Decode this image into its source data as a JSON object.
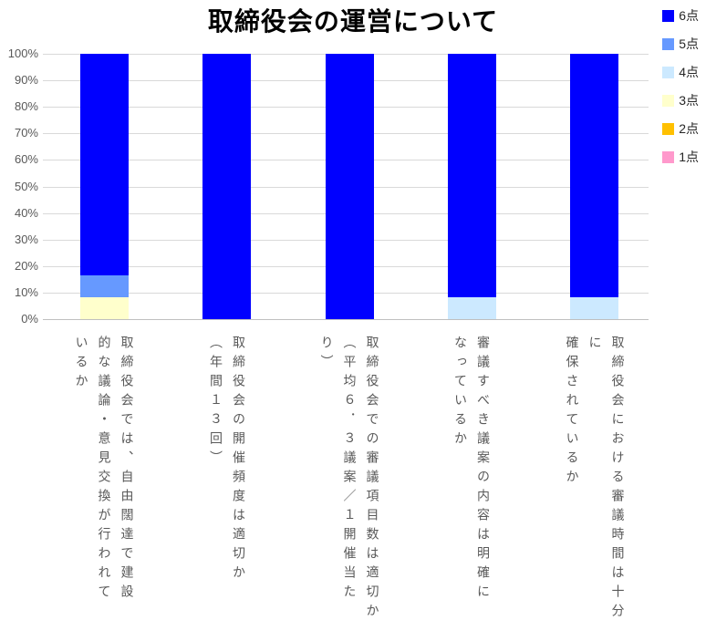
{
  "chart_data": {
    "type": "bar",
    "variant": "stacked-100-percent-column",
    "title": "取締役会の運営について",
    "categories": [
      "取締役会では、自由闊達で建設\n的な議論・意見交換が行われて\nいるか",
      "取締役会の開催頻度は適切か\n（年間１３回）",
      "取締役会での審議項目数は適切か\n（平均６．３議案／１開催当た\nり）",
      "審議すべき議案の内容は明確に\nなっているか",
      "取締役会における審議時間は十分に\n確保されているか"
    ],
    "series": [
      {
        "name": "6点",
        "color": "#0000FF",
        "values": [
          83.3,
          100,
          100,
          91.7,
          91.7
        ]
      },
      {
        "name": "5点",
        "color": "#6699FF",
        "values": [
          8.3,
          0,
          0,
          0,
          0
        ]
      },
      {
        "name": "4点",
        "color": "#CCE9FF",
        "values": [
          0,
          0,
          0,
          8.3,
          8.3
        ]
      },
      {
        "name": "3点",
        "color": "#FFFFCC",
        "values": [
          8.3,
          0,
          0,
          0,
          0
        ]
      },
      {
        "name": "2点",
        "color": "#FFC000",
        "values": [
          0,
          0,
          0,
          0,
          0
        ]
      },
      {
        "name": "1点",
        "color": "#FF99CC",
        "values": [
          0,
          0,
          0,
          0,
          0
        ]
      }
    ],
    "stack_order_bottom_to_top": [
      "1点",
      "2点",
      "3点",
      "4点",
      "5点",
      "6点"
    ],
    "y_axis": {
      "min": 0,
      "max": 100,
      "tick_step": 10,
      "tick_labels": [
        "0%",
        "10%",
        "20%",
        "30%",
        "40%",
        "50%",
        "60%",
        "70%",
        "80%",
        "90%",
        "100%"
      ]
    },
    "grid": true,
    "legend_position": "top-right",
    "colors": {
      "gridline": "#D9D9D9",
      "axis_line": "#BFBFBF",
      "tick_text": "#595959",
      "category_text": "#595959",
      "title_text": "#000000",
      "legend_text": "#262626"
    }
  }
}
